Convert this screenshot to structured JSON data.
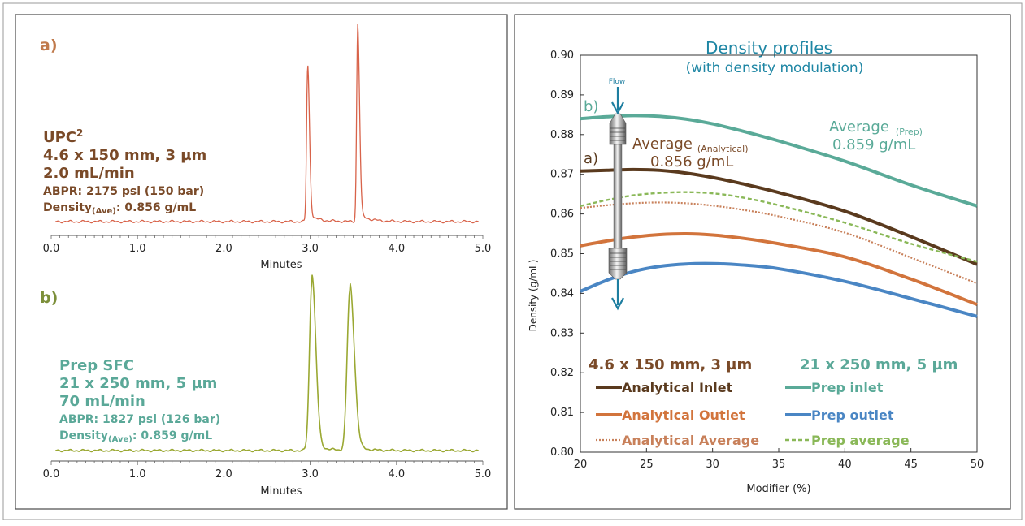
{
  "colors": {
    "chrom_a": "#d8634a",
    "chrom_b": "#9aa832",
    "brown": "#7a4a28",
    "green_text": "#7c8f3a",
    "teal": "#5aa898",
    "teal_title": "#1e86a4",
    "analytical_inlet": "#5a3a1e",
    "analytical_outlet": "#d2743c",
    "analytical_average": "#c8805a",
    "prep_inlet": "#5aaa98",
    "prep_outlet": "#4a86c4",
    "prep_average": "#8ab858",
    "flow": "#1e7ea0"
  },
  "panel_a": {
    "letter": "a)",
    "title_main": "UPC",
    "title_sup": "2",
    "line1": "4.6 x 150 mm, 3 µm",
    "line2": "2.0 mL/min",
    "line3": "ABPR: 2175 psi (150 bar)",
    "density_prefix": "Density",
    "density_sub": "(Ave)",
    "density_value": ": 0.856 g/mL"
  },
  "panel_b": {
    "letter": "b)",
    "title_main": "Prep SFC",
    "line1": "21 x 250 mm, 5 µm",
    "line2": "70 mL/min",
    "line3": "ABPR: 1827 psi (126 bar)",
    "density_prefix": "Density",
    "density_sub": "(Ave)",
    "density_value": ": 0.859 g/mL"
  },
  "right_text": {
    "title": "Density profiles",
    "subtitle": "(with density modulation)",
    "flow": "Flow",
    "label_b": "b)",
    "label_a": "a)",
    "avg_analytical_main": "Average",
    "avg_analytical_sub": "(Analytical)",
    "avg_analytical_value": "0.856 g/mL",
    "avg_prep_main": "Average",
    "avg_prep_sub": "(Prep)",
    "avg_prep_value": "0.859 g/mL",
    "col_left_title": "4.6 x 150 mm, 3 µm",
    "col_right_title": "21 x 250 mm, 5 µm"
  },
  "chart_data": [
    {
      "type": "line",
      "panel": "a",
      "xlabel": "Minutes",
      "xlim": [
        0.0,
        5.0
      ],
      "x_ticks": [
        "0.0",
        "1.0",
        "2.0",
        "3.0",
        "4.0",
        "5.0"
      ],
      "peaks": [
        {
          "retention_time": 2.97,
          "relative_height": 0.8
        },
        {
          "retention_time": 3.55,
          "relative_height": 1.0
        }
      ]
    },
    {
      "type": "line",
      "panel": "b",
      "xlabel": "Minutes",
      "xlim": [
        0.0,
        5.0
      ],
      "x_ticks": [
        "0.0",
        "1.0",
        "2.0",
        "3.0",
        "4.0",
        "5.0"
      ],
      "peaks": [
        {
          "retention_time": 3.02,
          "relative_height": 1.0
        },
        {
          "retention_time": 3.46,
          "relative_height": 0.94
        }
      ]
    },
    {
      "type": "line",
      "xlabel": "Modifier (%)",
      "ylabel": "Density (g/mL)",
      "xlim": [
        20,
        50
      ],
      "ylim": [
        0.8,
        0.9
      ],
      "x_ticks": [
        "20",
        "25",
        "30",
        "35",
        "40",
        "45",
        "50"
      ],
      "y_ticks": [
        "0.80",
        "0.81",
        "0.82",
        "0.83",
        "0.84",
        "0.85",
        "0.86",
        "0.87",
        "0.88",
        "0.89",
        "0.90"
      ],
      "series": [
        {
          "name": "Analytical Inlet",
          "group": "left",
          "style": "solid",
          "color_key": "analytical_inlet",
          "x": [
            20,
            22,
            24,
            26,
            28,
            30,
            32,
            35,
            40,
            45,
            50
          ],
          "y": [
            0.8708,
            0.871,
            0.8712,
            0.871,
            0.8703,
            0.8692,
            0.8678,
            0.8654,
            0.8607,
            0.8543,
            0.8473
          ]
        },
        {
          "name": "Prep inlet",
          "group": "right",
          "style": "solid",
          "color_key": "prep_inlet",
          "x": [
            20,
            22,
            24,
            26,
            28,
            30,
            32,
            35,
            40,
            45,
            50
          ],
          "y": [
            0.884,
            0.8845,
            0.8848,
            0.8846,
            0.8839,
            0.8827,
            0.8811,
            0.8784,
            0.8733,
            0.8673,
            0.862
          ]
        },
        {
          "name": "Analytical Outlet",
          "group": "left",
          "style": "solid",
          "color_key": "analytical_outlet",
          "x": [
            20,
            22,
            24,
            26,
            28,
            30,
            32,
            35,
            40,
            45,
            50
          ],
          "y": [
            0.852,
            0.8532,
            0.8542,
            0.8548,
            0.855,
            0.8547,
            0.854,
            0.8525,
            0.8492,
            0.8436,
            0.8372
          ]
        },
        {
          "name": "Prep outlet",
          "group": "right",
          "style": "solid",
          "color_key": "prep_outlet",
          "x": [
            20,
            22,
            24,
            26,
            28,
            30,
            32,
            35,
            40,
            45,
            50
          ],
          "y": [
            0.8405,
            0.8433,
            0.8455,
            0.8468,
            0.8474,
            0.8475,
            0.8472,
            0.8462,
            0.843,
            0.8387,
            0.8342
          ]
        },
        {
          "name": "Analytical Average",
          "group": "left",
          "style": "dotted",
          "color_key": "analytical_average",
          "x": [
            20,
            22,
            24,
            26,
            28,
            30,
            32,
            35,
            40,
            45,
            50
          ],
          "y": [
            0.8615,
            0.8622,
            0.8627,
            0.8629,
            0.8627,
            0.8621,
            0.8612,
            0.8594,
            0.8553,
            0.849,
            0.8425
          ]
        },
        {
          "name": "Prep average",
          "group": "right",
          "style": "dashed",
          "color_key": "prep_average",
          "x": [
            20,
            22,
            24,
            26,
            28,
            30,
            32,
            35,
            40,
            45,
            50
          ],
          "y": [
            0.862,
            0.8635,
            0.8647,
            0.8653,
            0.8655,
            0.8652,
            0.8643,
            0.8622,
            0.8578,
            0.8525,
            0.848
          ]
        }
      ]
    }
  ]
}
